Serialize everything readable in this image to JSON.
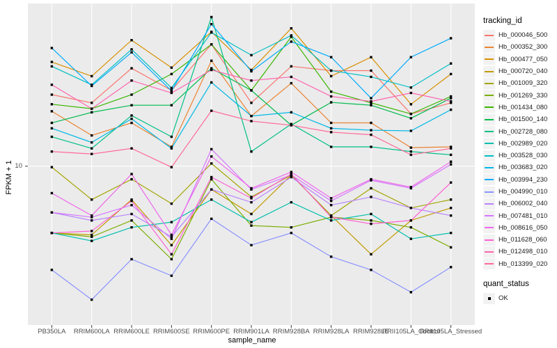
{
  "figure": {
    "background": "#FFFFFF",
    "panel_bg": "#EBEBEB",
    "grid_color": "#FFFFFF",
    "marker_color": "#000000",
    "axis_text_color": "#4D4D4D"
  },
  "chart_data": {
    "type": "line",
    "title": "",
    "xlabel": "sample_name",
    "ylabel": "FPKM + 1",
    "y_scale": "log10",
    "y_tick_labels": [
      "10"
    ],
    "y_tick_values": [
      10
    ],
    "ylim": [
      1.83,
      57
    ],
    "grid": "major-only",
    "legend_position": "right",
    "legend_title": "tracking_id",
    "legend2_title": "quant_status",
    "legend2_items": [
      {
        "label": "OK",
        "marker": "square"
      }
    ],
    "categories": [
      "PB350LA",
      "RRIM600LA",
      "RRIM600LE",
      "RRIM600SE",
      "RRIM600PE",
      "RRIM901LA",
      "RRIM928BA",
      "RRIM928LA",
      "RRIM928LE",
      "RRII105LA_Control",
      "RRII105LA_Stressed"
    ],
    "series": [
      {
        "name": "Hb_000046_500",
        "color": "#F8766D",
        "values": [
          21.5,
          19.7,
          28.5,
          22.5,
          36.8,
          19.7,
          29.1,
          27.8,
          27.8,
          17.5,
          19.7
        ]
      },
      {
        "name": "Hb_000352_300",
        "color": "#EA8331",
        "values": [
          18.0,
          13.9,
          15.9,
          12.3,
          30.9,
          17.1,
          24.3,
          15.9,
          15.9,
          12.2,
          12.3
        ]
      },
      {
        "name": "Hb_000477_050",
        "color": "#D89000",
        "values": [
          30.5,
          26.2,
          38.5,
          28.7,
          42.1,
          28.0,
          43.7,
          26.2,
          32.1,
          19.4,
          26.8
        ]
      },
      {
        "name": "Hb_000720_040",
        "color": "#C09B00",
        "values": [
          4.9,
          4.8,
          7.0,
          4.3,
          7.8,
          6.0,
          9.1,
          5.9,
          3.9,
          5.6,
          6.4
        ]
      },
      {
        "name": "Hb_001009_320",
        "color": "#A3A500",
        "values": [
          9.9,
          7.0,
          8.7,
          6.7,
          10.3,
          7.2,
          9.1,
          5.9,
          7.9,
          6.4,
          7.0
        ]
      },
      {
        "name": "Hb_001269_330",
        "color": "#7CAE00",
        "values": [
          4.9,
          4.7,
          5.6,
          3.7,
          8.7,
          5.3,
          5.2,
          5.8,
          5.6,
          5.2,
          4.2
        ]
      },
      {
        "name": "Hb_001434_080",
        "color": "#39B600",
        "values": [
          19.4,
          18.5,
          21.5,
          26.8,
          36.8,
          22.5,
          39.9,
          22.2,
          19.7,
          17.5,
          21.1
        ]
      },
      {
        "name": "Hb_001500_140",
        "color": "#00BB4E",
        "values": [
          15.9,
          17.8,
          19.2,
          19.2,
          28.5,
          22.5,
          15.5,
          19.8,
          19.2,
          16.7,
          20.7
        ]
      },
      {
        "name": "Hb_002728_080",
        "color": "#00C087",
        "values": [
          13.7,
          12.1,
          17.2,
          13.7,
          49.3,
          11.7,
          15.7,
          12.3,
          12.3,
          11.7,
          11.3
        ]
      },
      {
        "name": "Hb_002989_020",
        "color": "#00C0AF",
        "values": [
          4.9,
          4.5,
          5.2,
          5.5,
          7.0,
          5.5,
          6.8,
          5.6,
          6.0,
          4.6,
          4.9
        ]
      },
      {
        "name": "Hb_003528_030",
        "color": "#00BFC4",
        "values": [
          29.1,
          23.9,
          34.9,
          23.1,
          41.8,
          32.8,
          40.5,
          27.8,
          26.0,
          23.2,
          30.0
        ]
      },
      {
        "name": "Hb_003683_020",
        "color": "#00B8E7",
        "values": [
          15.0,
          12.9,
          16.6,
          12.1,
          24.5,
          17.1,
          17.8,
          15.0,
          14.7,
          14.6,
          18.3
        ]
      },
      {
        "name": "Hb_003994_230",
        "color": "#00ACFC",
        "values": [
          35.4,
          23.6,
          33.8,
          22.4,
          45.7,
          27.6,
          37.9,
          32.1,
          20.7,
          32.1,
          39.3
        ]
      },
      {
        "name": "Hb_004990_010",
        "color": "#8B93FF",
        "values": [
          3.3,
          2.4,
          3.7,
          3.1,
          5.7,
          4.3,
          4.9,
          3.8,
          3.3,
          2.6,
          3.4
        ]
      },
      {
        "name": "Hb_006002_040",
        "color": "#B983FF",
        "values": [
          6.1,
          5.6,
          6.0,
          4.7,
          7.8,
          6.8,
          8.9,
          6.6,
          7.2,
          6.4,
          5.9
        ]
      },
      {
        "name": "Hb_007481_010",
        "color": "#D575FE",
        "values": [
          6.1,
          5.8,
          6.6,
          4.6,
          12.0,
          7.8,
          9.1,
          6.9,
          8.6,
          7.9,
          10.2
        ]
      },
      {
        "name": "Hb_008616_050",
        "color": "#EF67EB",
        "values": [
          7.5,
          5.9,
          9.2,
          4.8,
          11.1,
          7.9,
          9.4,
          7.1,
          8.7,
          8.0,
          10.5
        ]
      },
      {
        "name": "Hb_011628_060",
        "color": "#FD61D3",
        "values": [
          4.9,
          5.0,
          6.9,
          3.9,
          8.9,
          7.1,
          9.2,
          5.8,
          5.4,
          5.6,
          8.4
        ]
      },
      {
        "name": "Hb_012498_010",
        "color": "#FF65B0",
        "values": [
          23.9,
          18.5,
          25.0,
          21.9,
          28.0,
          25.0,
          26.0,
          21.1,
          20.0,
          21.9,
          20.0
        ]
      },
      {
        "name": "Hb_013399_020",
        "color": "#FF6A98",
        "values": [
          11.7,
          11.4,
          12.1,
          9.9,
          18.1,
          16.2,
          15.5,
          14.4,
          14.0,
          11.3,
          12.1
        ]
      }
    ]
  }
}
